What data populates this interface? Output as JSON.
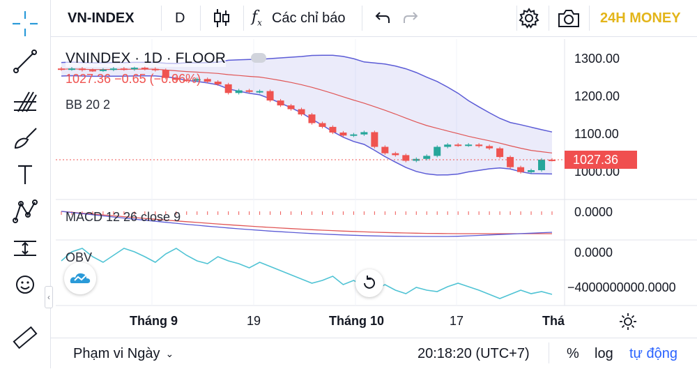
{
  "toolbar": {
    "symbol": "VN-INDEX",
    "interval": "D",
    "indicators_label": "Các chỉ báo",
    "brand": "24H MONEY"
  },
  "legend": {
    "title": "VNINDEX · 1D · FLOOR",
    "ohlc": "1027.36  −0.65 (−0.06%)",
    "bb": "BB 20 2",
    "macd": "MACD 12 26 close 9",
    "obv": "OBV"
  },
  "price_axis": {
    "labels": [
      "1300.00",
      "1200.00",
      "1100.00",
      "1000.00"
    ],
    "last_price": "1027.36"
  },
  "macd_axis": {
    "labels": [
      "0.0000"
    ]
  },
  "obv_axis": {
    "labels": [
      "0.0000",
      "−4000000000.0000"
    ]
  },
  "time_axis": {
    "labels": [
      "Tháng 9",
      "19",
      "Tháng 10",
      "17",
      "Thán"
    ]
  },
  "bottom": {
    "range_label": "Phạm vi Ngày",
    "time": "20:18:20 (UTC+7)",
    "percent": "%",
    "log": "log",
    "auto": "tự động"
  },
  "colors": {
    "up": "#26a69a",
    "down": "#ef5350",
    "bb_band": "#5b5bd6",
    "bb_mid": "#e05555",
    "obv": "#4fc3d4",
    "brand": "#e3b51a",
    "price_tag": "#f04f4f"
  },
  "chart_data": {
    "type": "candlestick",
    "close": [
      1268,
      1270,
      1266,
      1265,
      1267,
      1270,
      1268,
      1272,
      1269,
      1266,
      1245,
      1240,
      1238,
      1242,
      1235,
      1228,
      1205,
      1212,
      1208,
      1210,
      1185,
      1172,
      1162,
      1148,
      1125,
      1115,
      1100,
      1092,
      1095,
      1101,
      1062,
      1045,
      1040,
      1025,
      1030,
      1038,
      1062,
      1068,
      1066,
      1068,
      1064,
      1058,
      1035,
      1008,
      995,
      1000,
      1028,
      1027.36
    ]
  }
}
